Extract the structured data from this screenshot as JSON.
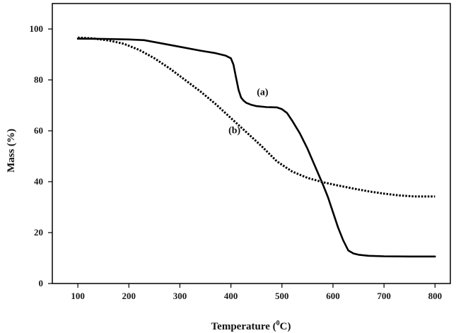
{
  "chart_data": {
    "type": "line",
    "xlabel_main": "Temperature (",
    "xlabel_sup": "0",
    "xlabel_end": "C)",
    "ylabel": "Mass (%)",
    "xlim": [
      50,
      830
    ],
    "ylim": [
      0,
      110
    ],
    "xticks": [
      100,
      200,
      300,
      400,
      500,
      600,
      700,
      800
    ],
    "yticks": [
      0,
      20,
      40,
      60,
      80,
      100
    ],
    "grid": false,
    "series": [
      {
        "name": "(a)",
        "style": "solid",
        "color": "#000000",
        "x": [
          100,
          150,
          200,
          230,
          260,
          300,
          340,
          370,
          390,
          400,
          405,
          410,
          415,
          420,
          425,
          430,
          440,
          450,
          470,
          490,
          500,
          510,
          520,
          535,
          550,
          565,
          580,
          590,
          600,
          610,
          620,
          630,
          640,
          650,
          670,
          700,
          750,
          800
        ],
        "y": [
          96.2,
          96.1,
          95.9,
          95.6,
          94.5,
          93,
          91.5,
          90.5,
          89.5,
          88.5,
          86,
          81,
          76,
          73,
          71.8,
          71,
          70.2,
          69.7,
          69.3,
          69.2,
          68.5,
          67,
          64,
          59,
          53,
          46,
          39,
          34,
          28,
          22,
          17,
          13,
          11.8,
          11.3,
          10.9,
          10.7,
          10.6,
          10.6
        ]
      },
      {
        "name": "(b)",
        "style": "dotted",
        "color": "#000000",
        "x": [
          100,
          130,
          160,
          190,
          220,
          250,
          280,
          310,
          340,
          370,
          400,
          430,
          460,
          490,
          520,
          550,
          580,
          610,
          640,
          670,
          700,
          730,
          760,
          800
        ],
        "y": [
          96.6,
          96.3,
          95.5,
          94.2,
          91.8,
          88.5,
          84.5,
          80,
          75.5,
          70.5,
          65,
          59.5,
          54,
          48,
          44,
          41.5,
          39.8,
          38.5,
          37.3,
          36.2,
          35.3,
          34.6,
          34.2,
          34.2
        ]
      }
    ],
    "annotations": [
      {
        "text": "(a)",
        "x": 462,
        "y": 74
      },
      {
        "text": "(b)",
        "x": 407,
        "y": 59
      }
    ]
  }
}
